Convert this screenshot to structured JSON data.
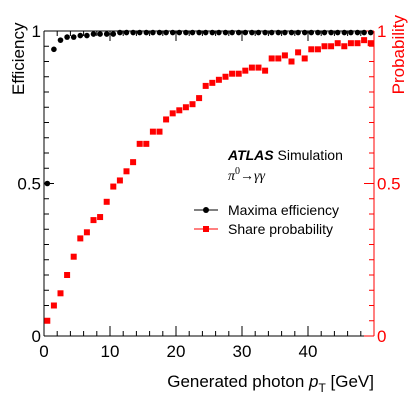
{
  "chart_data": {
    "type": "scatter",
    "experiment": "ATLAS",
    "experiment_suffix": "Simulation",
    "process": {
      "base": "π",
      "sup": "0",
      "arrow": "→",
      "products": "γγ"
    },
    "xlabel": {
      "pre": "Generated photon ",
      "var": "p",
      "sub": "T",
      "post": " [GeV]"
    },
    "ylabel_left": "Efficiency",
    "ylabel_right": "Probability",
    "xlim": [
      0,
      50
    ],
    "ylim": [
      0,
      1
    ],
    "x_ticks": [
      0,
      10,
      20,
      30,
      40
    ],
    "x_tick_labels": [
      "0",
      "10",
      "20",
      "30",
      "40"
    ],
    "y_ticks": [
      0,
      0.5,
      1
    ],
    "y_tick_labels": [
      "0",
      "0.5",
      "1"
    ],
    "grid": false,
    "legend_position": "right-middle",
    "colors": {
      "maxima": "#000000",
      "share": "#ff0000"
    },
    "series": [
      {
        "name": "Maxima efficiency",
        "marker": "circle",
        "x": [
          0.5,
          1.5,
          2.5,
          3.5,
          4.5,
          5.5,
          6.5,
          7.5,
          8.5,
          9.5,
          10.5,
          11.5,
          12.5,
          13.5,
          14.5,
          15.5,
          16.5,
          17.5,
          18.5,
          19.5,
          20.5,
          21.5,
          22.5,
          23.5,
          24.5,
          25.5,
          26.5,
          27.5,
          28.5,
          29.5,
          30.5,
          31.5,
          32.5,
          33.5,
          34.5,
          35.5,
          36.5,
          37.5,
          38.5,
          39.5,
          40.5,
          41.5,
          42.5,
          43.5,
          44.5,
          45.5,
          46.5,
          47.5,
          48.5,
          49.5
        ],
        "values": [
          0.5,
          0.94,
          0.97,
          0.98,
          0.98,
          0.985,
          0.985,
          0.99,
          0.99,
          0.99,
          0.99,
          0.995,
          0.995,
          0.995,
          0.995,
          0.995,
          0.995,
          0.995,
          0.995,
          0.995,
          0.995,
          0.995,
          0.995,
          0.995,
          0.995,
          0.995,
          0.995,
          0.995,
          0.995,
          0.995,
          0.995,
          0.995,
          0.995,
          0.995,
          0.995,
          0.995,
          0.995,
          0.995,
          0.995,
          0.995,
          0.995,
          0.995,
          0.995,
          0.995,
          0.995,
          0.995,
          0.995,
          0.995,
          0.995,
          0.995
        ]
      },
      {
        "name": "Share probability",
        "marker": "square",
        "x": [
          0.5,
          1.5,
          2.5,
          3.5,
          4.5,
          5.5,
          6.5,
          7.5,
          8.5,
          9.5,
          10.5,
          11.5,
          12.5,
          13.5,
          14.5,
          15.5,
          16.5,
          17.5,
          18.5,
          19.5,
          20.5,
          21.5,
          22.5,
          23.5,
          24.5,
          25.5,
          26.5,
          27.5,
          28.5,
          29.5,
          30.5,
          31.5,
          32.5,
          33.5,
          34.5,
          35.5,
          36.5,
          37.5,
          38.5,
          39.5,
          40.5,
          41.5,
          42.5,
          43.5,
          44.5,
          45.5,
          46.5,
          47.5,
          48.5,
          49.5
        ],
        "values": [
          0.05,
          0.1,
          0.14,
          0.2,
          0.26,
          0.32,
          0.34,
          0.38,
          0.39,
          0.44,
          0.49,
          0.51,
          0.54,
          0.57,
          0.63,
          0.63,
          0.67,
          0.67,
          0.71,
          0.73,
          0.74,
          0.75,
          0.76,
          0.78,
          0.82,
          0.83,
          0.84,
          0.85,
          0.86,
          0.86,
          0.87,
          0.88,
          0.88,
          0.87,
          0.91,
          0.91,
          0.92,
          0.9,
          0.93,
          0.91,
          0.94,
          0.94,
          0.95,
          0.95,
          0.96,
          0.95,
          0.96,
          0.96,
          0.97,
          0.96
        ]
      }
    ]
  }
}
